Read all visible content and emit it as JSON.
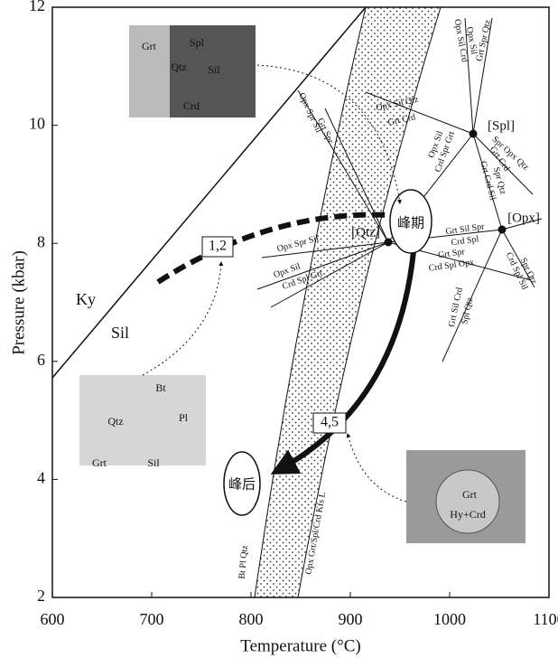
{
  "chart_data": {
    "type": "phase-diagram",
    "x_label": "Temperature (°C)",
    "y_label": "Pressure (kbar)",
    "xlim": [
      600,
      1100
    ],
    "xticks": [
      600,
      700,
      800,
      900,
      1000,
      1100
    ],
    "ylim": [
      2,
      12
    ],
    "yticks": [
      2,
      4,
      6,
      8,
      10,
      12
    ],
    "labels": [
      "Ky",
      "Sil",
      "[Spl]",
      "[Opx]",
      "[Qtz]",
      "峰期",
      "峰后",
      "1,2",
      "4,5",
      "Opx Sil Qtz",
      "Grt Crd",
      "Grt Spr",
      "Opx Spr Sil",
      "Opx Sil Crd",
      "Opx Sil",
      "Grt Spr Qtz",
      "Opx Sil",
      "Crd Spr Grt",
      "Spr Opx Qtz",
      "Grt Crd",
      "Grt Crd Sil",
      "Spr Qtz",
      "Grt Sil Spr",
      "Crd Spl",
      "Grt Spr",
      "Crd Spl Opx",
      "Spr Qtz",
      "Crd Spl Sil",
      "Grt Sil Crd",
      "Spl Qtz",
      "Opx Spr Sil",
      "Opx Sil",
      "Crd Spl Grt",
      "Bt Pl Qtz",
      "Opx Grt/Spl/Crd Kfs L",
      "Grt",
      "Spl",
      "Qtz",
      "Sil",
      "Crd",
      "Bt",
      "Qtz",
      "Pl",
      "Grt",
      "Sil",
      "Grt",
      "Hy+Crd"
    ]
  }
}
